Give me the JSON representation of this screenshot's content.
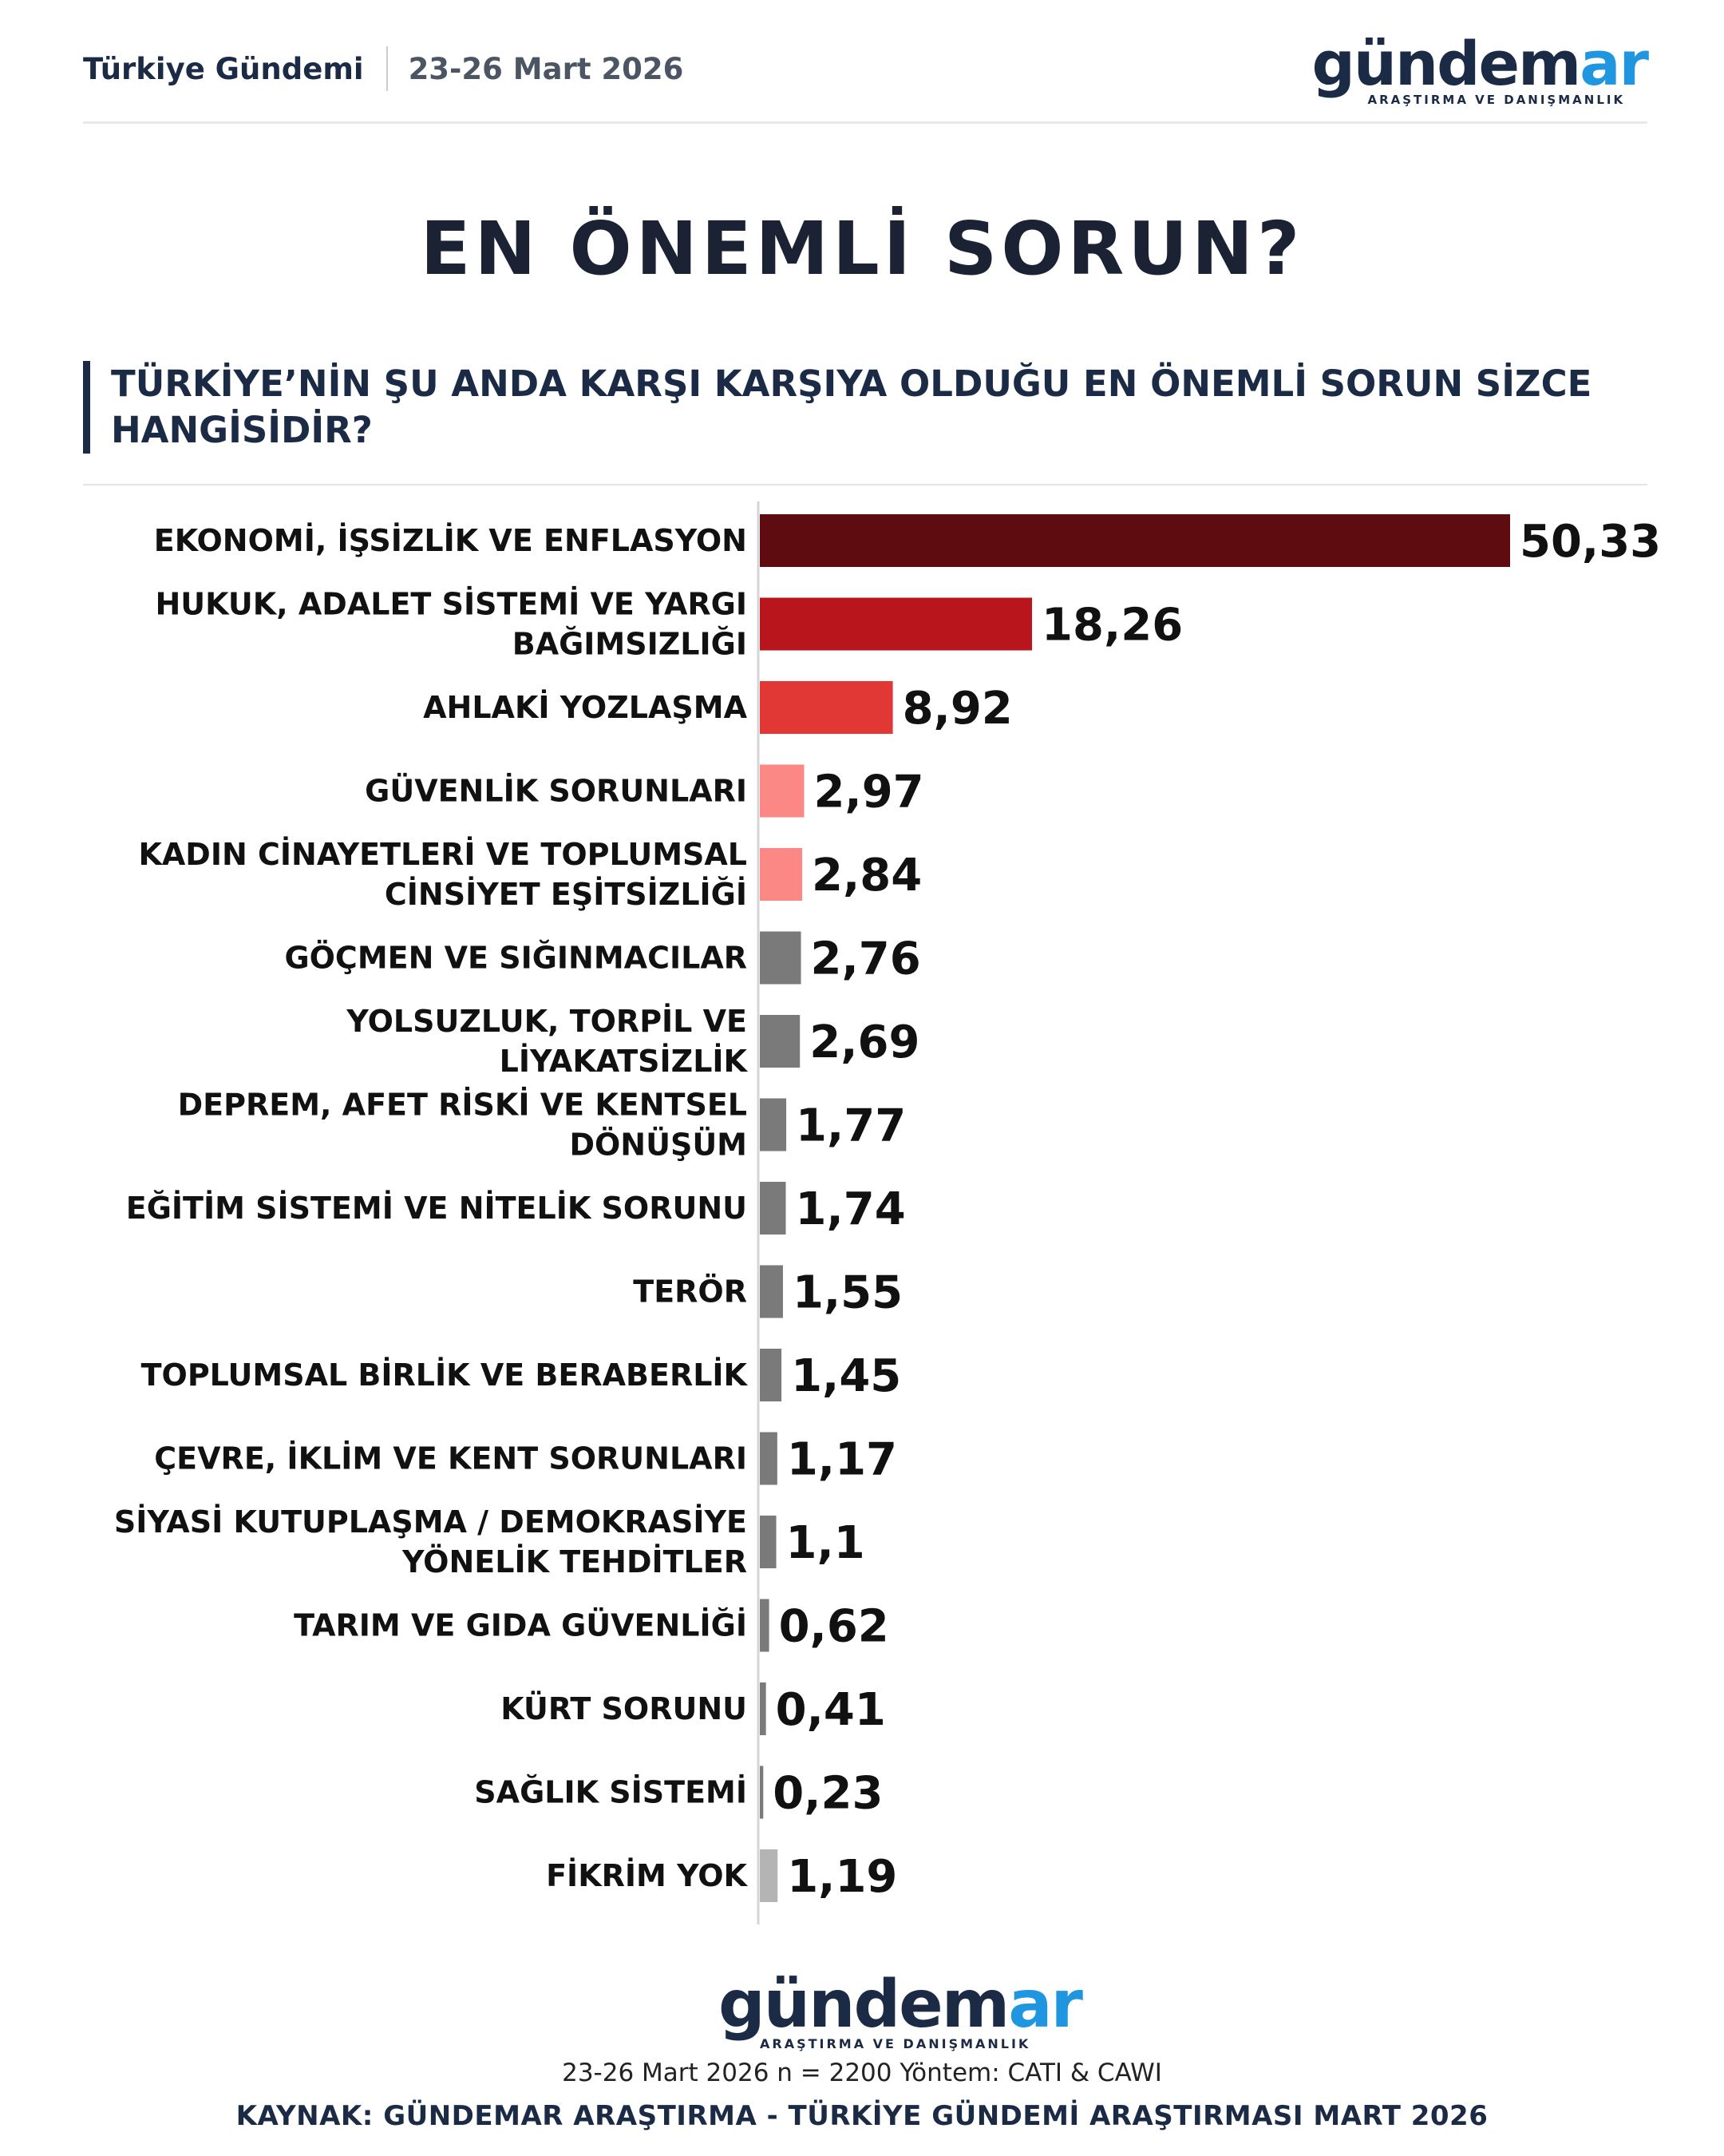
{
  "header": {
    "left_title": "Türkiye Gündemi",
    "date": "23-26 Mart 2026",
    "logo_word_main": "gündem",
    "logo_word_accent": "ar",
    "logo_subtitle": "ARAŞTIRMA VE DANIŞMANLIK"
  },
  "title": "EN ÖNEMLİ SORUN?",
  "question": {
    "line1": "TÜRKİYE’NİN ŞU ANDA KARŞI KARŞIYA OLDUĞU EN ÖNEMLİ SORUN SİZCE",
    "line2": "HANGİSİDİR?"
  },
  "chart_data": {
    "type": "bar",
    "orientation": "horizontal",
    "categories": [
      [
        "EKONOMİ, İŞSİZLİK VE ENFLASYON"
      ],
      [
        "HUKUK, ADALET SİSTEMİ VE YARGI",
        "BAĞIMSIZLIĞI"
      ],
      [
        "AHLAKİ YOZLAŞMA"
      ],
      [
        "GÜVENLİK SORUNLARI"
      ],
      [
        "KADIN CİNAYETLERİ VE TOPLUMSAL",
        "CİNSİYET EŞİTSİZLİĞİ"
      ],
      [
        "GÖÇMEN VE SIĞINMACILAR"
      ],
      [
        "YOLSUZLUK, TORPİL VE",
        "LİYAKATSİZLİK"
      ],
      [
        "DEPREM, AFET RİSKİ VE KENTSEL",
        "DÖNÜŞÜM"
      ],
      [
        "EĞİTİM SİSTEMİ VE NİTELİK SORUNU"
      ],
      [
        "TERÖR"
      ],
      [
        "TOPLUMSAL BİRLİK VE BERABERLİK"
      ],
      [
        "ÇEVRE, İKLİM VE KENT SORUNLARI"
      ],
      [
        "SİYASİ KUTUPLAŞMA / DEMOKRASİYE",
        "YÖNELİK TEHDİTLER"
      ],
      [
        "TARIM VE GIDA GÜVENLİĞİ"
      ],
      [
        "KÜRT SORUNU"
      ],
      [
        "SAĞLIK SİSTEMİ"
      ],
      [
        "FİKRİM YOK"
      ]
    ],
    "values": [
      50.33,
      18.26,
      8.92,
      2.97,
      2.84,
      2.76,
      2.69,
      1.77,
      1.74,
      1.55,
      1.45,
      1.17,
      1.1,
      0.62,
      0.41,
      0.23,
      1.19
    ],
    "value_labels": [
      "50,33",
      "18,26",
      "8,92",
      "2,97",
      "2,84",
      "2,76",
      "2,69",
      "1,77",
      "1,74",
      "1,55",
      "1,45",
      "1,17",
      "1,1",
      "0,62",
      "0,41",
      "0,23",
      "1,19"
    ],
    "colors": [
      "#5e0c10",
      "#b8151c",
      "#e23835",
      "#fb8885",
      "#fb8885",
      "#7a7a7a",
      "#7a7a7a",
      "#7a7a7a",
      "#7a7a7a",
      "#7a7a7a",
      "#7a7a7a",
      "#7a7a7a",
      "#7a7a7a",
      "#7a7a7a",
      "#7a7a7a",
      "#7a7a7a",
      "#b4b4b4"
    ],
    "xlim": [
      0,
      50.33
    ],
    "grid": false,
    "legend": "none"
  },
  "footer": {
    "logo_word_main": "gündem",
    "logo_word_accent": "ar",
    "logo_subtitle": "ARAŞTIRMA VE DANIŞMANLIK",
    "meta": "23-26 Mart 2026 n = 2200 Yöntem: CATI & CAWI",
    "source": "KAYNAK: GÜNDEMAR ARAŞTIRMA - TÜRKİYE GÜNDEMİ ARAŞTIRMASI MART 2026"
  }
}
